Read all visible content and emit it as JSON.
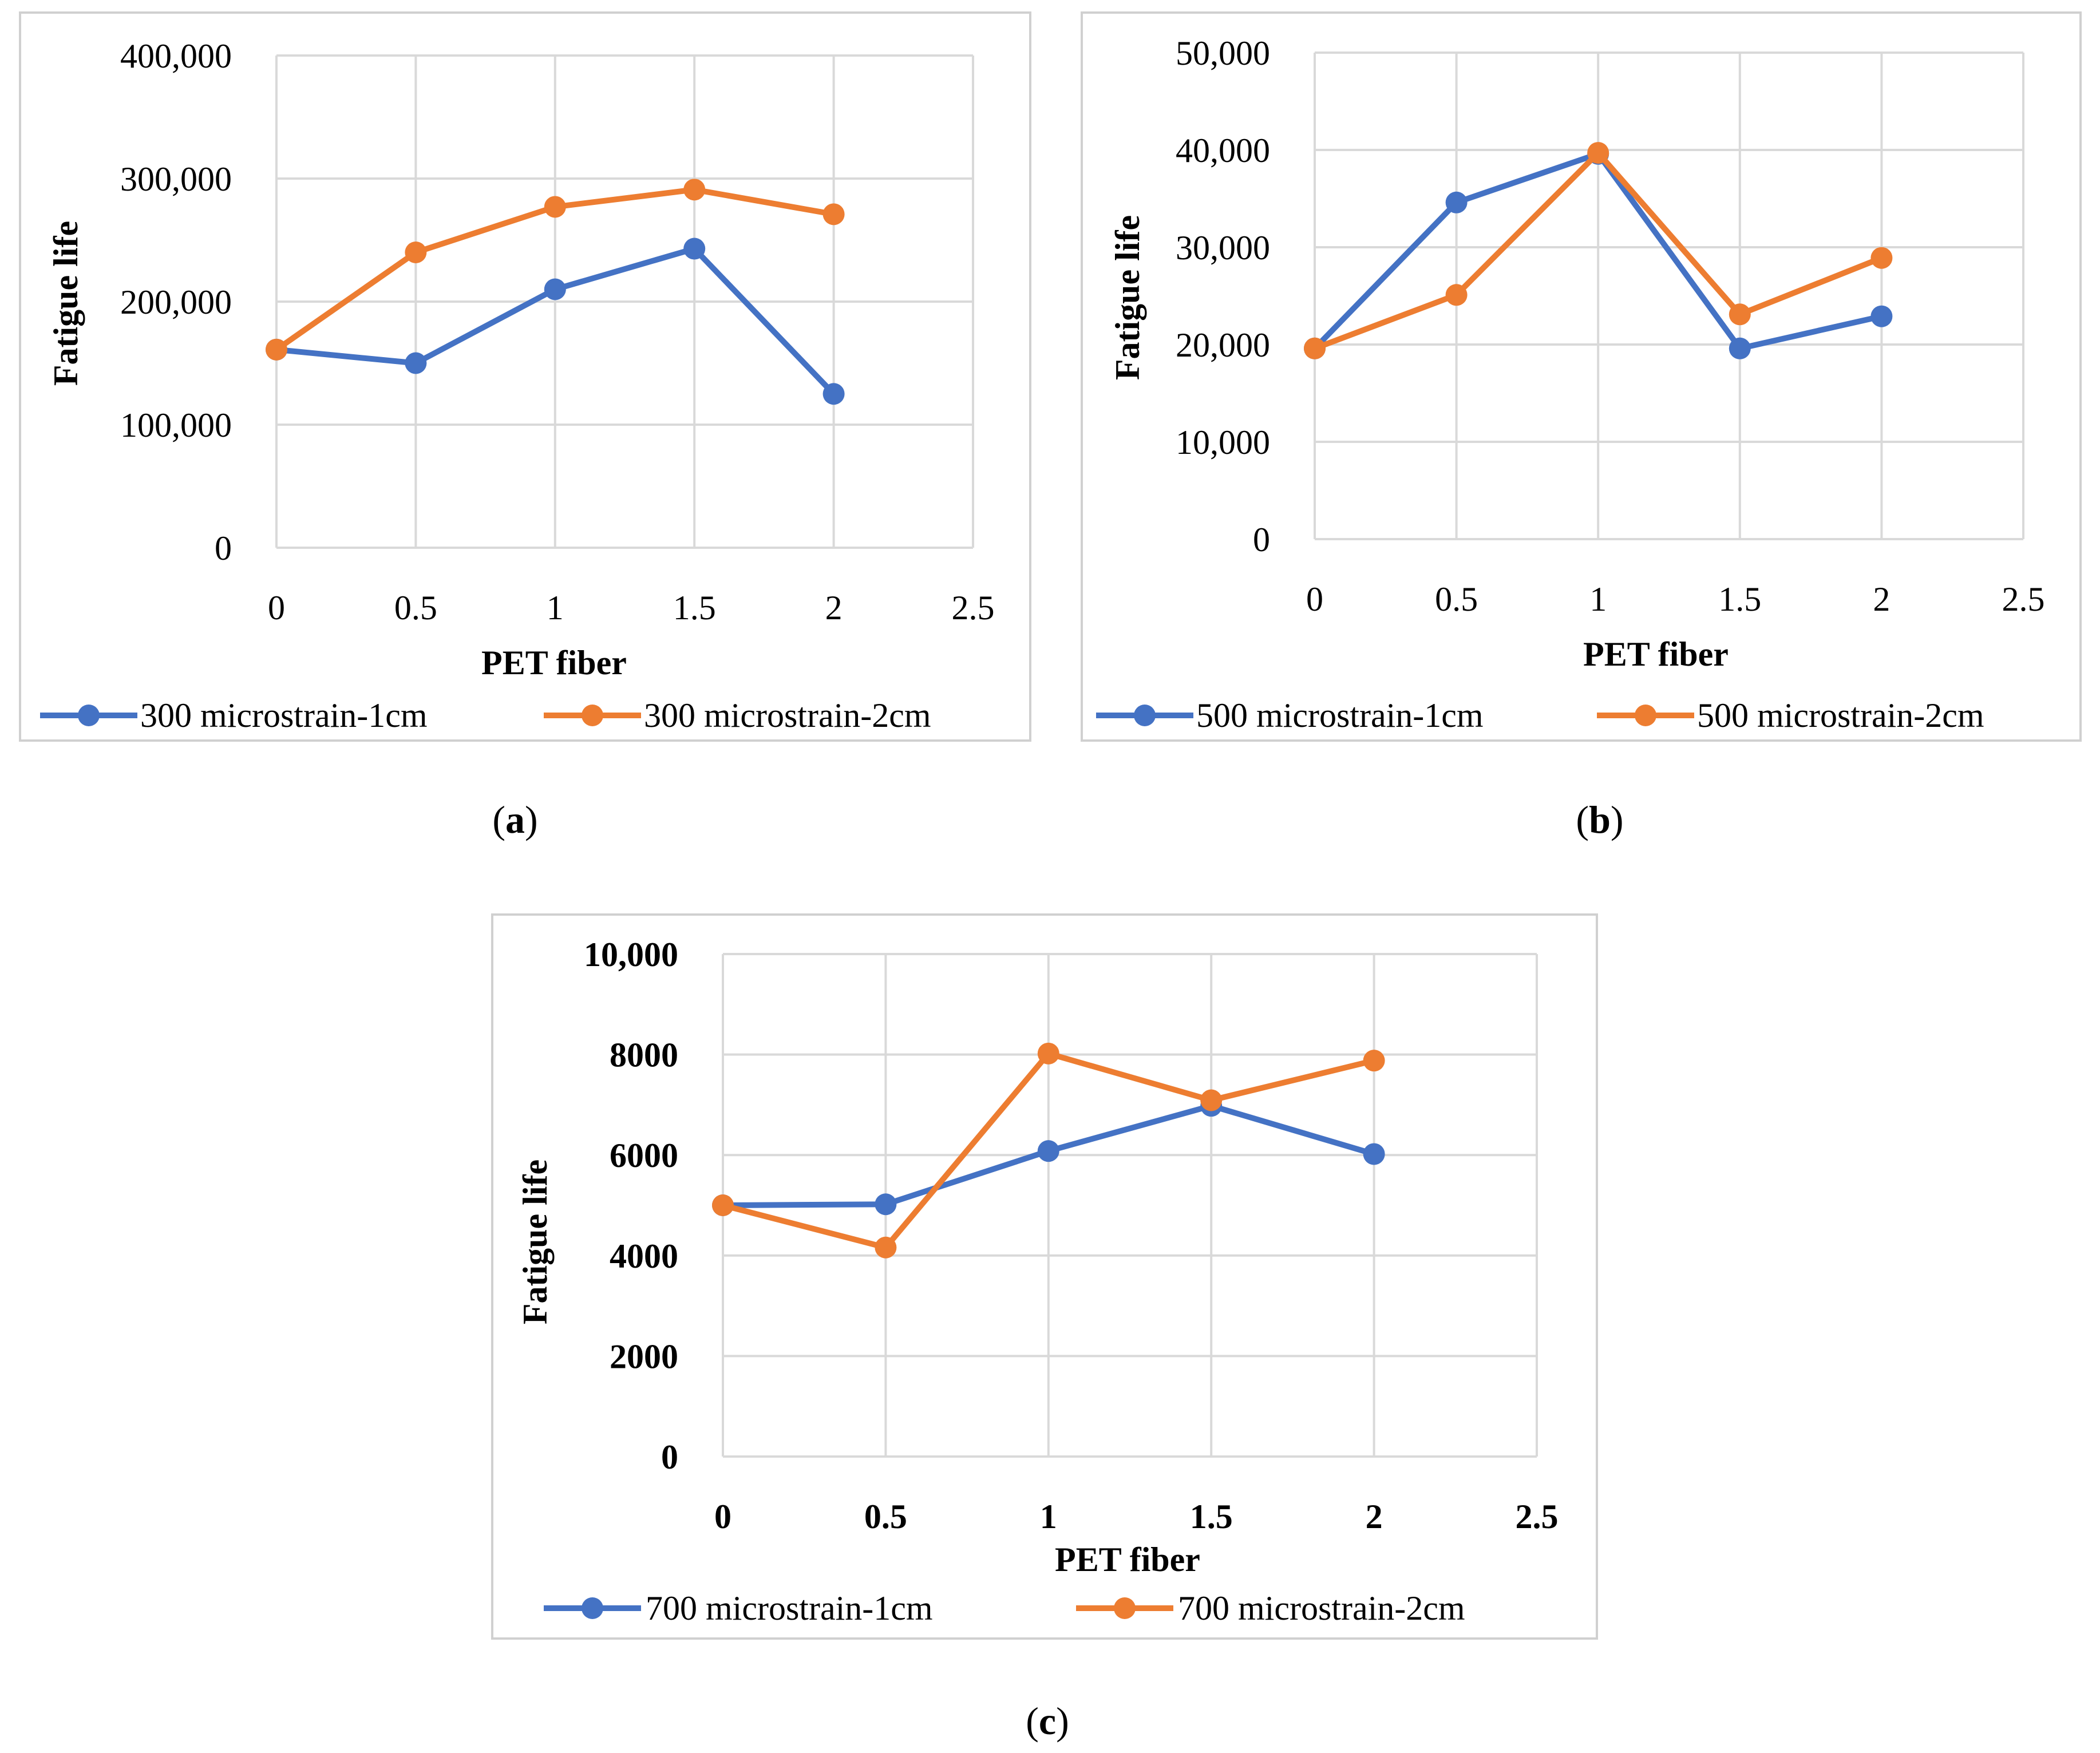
{
  "figure": {
    "colors": {
      "series_1cm": "#4472c4",
      "series_2cm": "#ed7d31",
      "grid": "#d9d9d9",
      "frame": "#d0d0d0"
    }
  },
  "chart_data": [
    {
      "type": "line",
      "panel_label": "a",
      "title": "",
      "xlabel": "PET fiber",
      "ylabel": "Fatigue life",
      "x": [
        0,
        0.5,
        1,
        1.5,
        2
      ],
      "xlim": [
        0,
        2.5
      ],
      "ylim": [
        0,
        400000
      ],
      "xticks": [
        "0",
        "0.5",
        "1",
        "1.5",
        "2",
        "2.5"
      ],
      "yticks": [
        "0",
        "100,000",
        "200,000",
        "300,000",
        "400,000"
      ],
      "legend_position": "bottom",
      "series": [
        {
          "name": "300 microstrain-1cm",
          "color": "#4472c4",
          "values": [
            161000,
            150000,
            210000,
            243000,
            125000
          ]
        },
        {
          "name": "300 microstrain-2cm",
          "color": "#ed7d31",
          "values": [
            161000,
            240000,
            277000,
            291000,
            271000
          ]
        }
      ]
    },
    {
      "type": "line",
      "panel_label": "b",
      "title": "",
      "xlabel": "PET fiber",
      "ylabel": "Fatigue life",
      "x": [
        0,
        0.5,
        1,
        1.5,
        2
      ],
      "xlim": [
        0,
        2.5
      ],
      "ylim": [
        0,
        50000
      ],
      "xticks": [
        "0",
        "0.5",
        "1",
        "1.5",
        "2",
        "2.5"
      ],
      "yticks": [
        "0",
        "10,000",
        "20,000",
        "30,000",
        "40,000",
        "50,000"
      ],
      "legend_position": "bottom",
      "series": [
        {
          "name": "500 microstrain-1cm",
          "color": "#4472c4",
          "values": [
            19600,
            34600,
            39600,
            19600,
            22900
          ]
        },
        {
          "name": "500 microstrain-2cm",
          "color": "#ed7d31",
          "values": [
            19600,
            25100,
            39700,
            23100,
            28900
          ]
        }
      ]
    },
    {
      "type": "line",
      "panel_label": "c",
      "title": "",
      "xlabel": "PET fiber",
      "ylabel": "Fatigue life",
      "x": [
        0,
        0.5,
        1,
        1.5,
        2
      ],
      "xlim": [
        0,
        2.5
      ],
      "ylim": [
        0,
        10000
      ],
      "xticks": [
        "0",
        "0.5",
        "1",
        "1.5",
        "2",
        "2.5"
      ],
      "yticks": [
        "0",
        "2000",
        "4000",
        "6000",
        "8000",
        "10,000"
      ],
      "legend_position": "bottom",
      "series": [
        {
          "name": "700 microstrain-1cm",
          "color": "#4472c4",
          "values": [
            5000,
            5020,
            6080,
            6980,
            6020
          ]
        },
        {
          "name": "700 microstrain-2cm",
          "color": "#ed7d31",
          "values": [
            5000,
            4160,
            8020,
            7090,
            7880
          ]
        }
      ]
    }
  ]
}
